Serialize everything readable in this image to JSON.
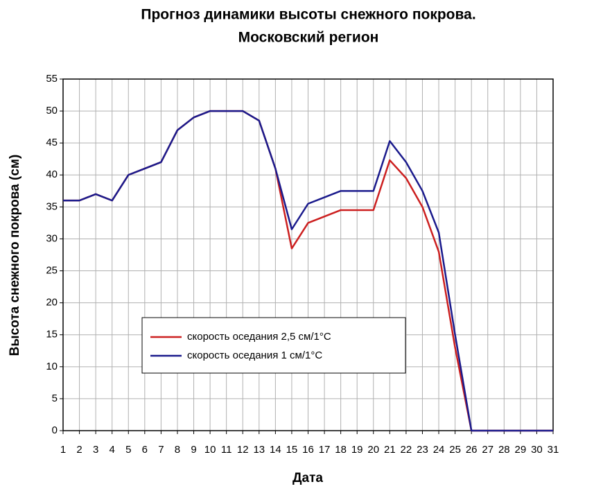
{
  "chart_data": {
    "type": "line",
    "title": [
      "Прогноз динамики высоты снежного покрова.",
      "Московский регион"
    ],
    "x_label": "Дата",
    "y_label": "Высота снежного покрова (см)",
    "x": [
      1,
      2,
      3,
      4,
      5,
      6,
      7,
      8,
      9,
      10,
      11,
      12,
      13,
      14,
      15,
      16,
      17,
      18,
      19,
      20,
      21,
      22,
      23,
      24,
      25,
      26,
      27,
      28,
      29,
      30,
      31
    ],
    "series": [
      {
        "name": "скорость оседания 2,5 см/1°С",
        "color": "#cc1f1f",
        "values": [
          36,
          36,
          37,
          36,
          40,
          41,
          42,
          47,
          49,
          50,
          50,
          50,
          48.5,
          41,
          28.5,
          32.5,
          33.5,
          34.5,
          34.5,
          34.5,
          42.3,
          39.5,
          35,
          28,
          13,
          0,
          0,
          0,
          0,
          0,
          0
        ]
      },
      {
        "name": "скорость оседания 1 см/1°С",
        "color": "#1a1a8c",
        "values": [
          36,
          36,
          37,
          36,
          40,
          41,
          42,
          47,
          49,
          50,
          50,
          50,
          48.5,
          41,
          31.5,
          35.5,
          36.5,
          37.5,
          37.5,
          37.5,
          45.3,
          42,
          37.5,
          31,
          15,
          0,
          0,
          0,
          0,
          0,
          0
        ]
      }
    ],
    "xlim": [
      1,
      31
    ],
    "xticks": [
      1,
      2,
      3,
      4,
      5,
      6,
      7,
      8,
      9,
      10,
      11,
      12,
      13,
      14,
      15,
      16,
      17,
      18,
      19,
      20,
      21,
      22,
      23,
      24,
      25,
      26,
      27,
      28,
      29,
      30,
      31
    ],
    "ylim": [
      0,
      55
    ],
    "yticks": [
      0,
      5,
      10,
      15,
      20,
      25,
      30,
      35,
      40,
      45,
      50,
      55
    ],
    "grid": true
  }
}
